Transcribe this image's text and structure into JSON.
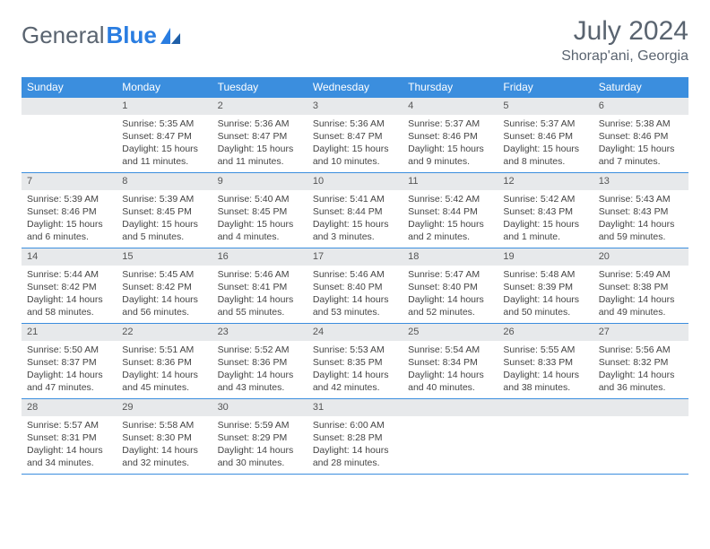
{
  "brand": {
    "part1": "General",
    "part2": "Blue"
  },
  "title": "July 2024",
  "location": "Shorap'ani, Georgia",
  "colors": {
    "header_bg": "#3b8ede",
    "header_text": "#ffffff",
    "daynum_bg": "#e7e9eb",
    "border": "#3b8ede",
    "title_color": "#5a6470",
    "body_text": "#444"
  },
  "weekdays": [
    "Sunday",
    "Monday",
    "Tuesday",
    "Wednesday",
    "Thursday",
    "Friday",
    "Saturday"
  ],
  "weeks": [
    [
      null,
      {
        "n": "1",
        "sr": "5:35 AM",
        "ss": "8:47 PM",
        "dl": "15 hours and 11 minutes."
      },
      {
        "n": "2",
        "sr": "5:36 AM",
        "ss": "8:47 PM",
        "dl": "15 hours and 11 minutes."
      },
      {
        "n": "3",
        "sr": "5:36 AM",
        "ss": "8:47 PM",
        "dl": "15 hours and 10 minutes."
      },
      {
        "n": "4",
        "sr": "5:37 AM",
        "ss": "8:46 PM",
        "dl": "15 hours and 9 minutes."
      },
      {
        "n": "5",
        "sr": "5:37 AM",
        "ss": "8:46 PM",
        "dl": "15 hours and 8 minutes."
      },
      {
        "n": "6",
        "sr": "5:38 AM",
        "ss": "8:46 PM",
        "dl": "15 hours and 7 minutes."
      }
    ],
    [
      {
        "n": "7",
        "sr": "5:39 AM",
        "ss": "8:46 PM",
        "dl": "15 hours and 6 minutes."
      },
      {
        "n": "8",
        "sr": "5:39 AM",
        "ss": "8:45 PM",
        "dl": "15 hours and 5 minutes."
      },
      {
        "n": "9",
        "sr": "5:40 AM",
        "ss": "8:45 PM",
        "dl": "15 hours and 4 minutes."
      },
      {
        "n": "10",
        "sr": "5:41 AM",
        "ss": "8:44 PM",
        "dl": "15 hours and 3 minutes."
      },
      {
        "n": "11",
        "sr": "5:42 AM",
        "ss": "8:44 PM",
        "dl": "15 hours and 2 minutes."
      },
      {
        "n": "12",
        "sr": "5:42 AM",
        "ss": "8:43 PM",
        "dl": "15 hours and 1 minute."
      },
      {
        "n": "13",
        "sr": "5:43 AM",
        "ss": "8:43 PM",
        "dl": "14 hours and 59 minutes."
      }
    ],
    [
      {
        "n": "14",
        "sr": "5:44 AM",
        "ss": "8:42 PM",
        "dl": "14 hours and 58 minutes."
      },
      {
        "n": "15",
        "sr": "5:45 AM",
        "ss": "8:42 PM",
        "dl": "14 hours and 56 minutes."
      },
      {
        "n": "16",
        "sr": "5:46 AM",
        "ss": "8:41 PM",
        "dl": "14 hours and 55 minutes."
      },
      {
        "n": "17",
        "sr": "5:46 AM",
        "ss": "8:40 PM",
        "dl": "14 hours and 53 minutes."
      },
      {
        "n": "18",
        "sr": "5:47 AM",
        "ss": "8:40 PM",
        "dl": "14 hours and 52 minutes."
      },
      {
        "n": "19",
        "sr": "5:48 AM",
        "ss": "8:39 PM",
        "dl": "14 hours and 50 minutes."
      },
      {
        "n": "20",
        "sr": "5:49 AM",
        "ss": "8:38 PM",
        "dl": "14 hours and 49 minutes."
      }
    ],
    [
      {
        "n": "21",
        "sr": "5:50 AM",
        "ss": "8:37 PM",
        "dl": "14 hours and 47 minutes."
      },
      {
        "n": "22",
        "sr": "5:51 AM",
        "ss": "8:36 PM",
        "dl": "14 hours and 45 minutes."
      },
      {
        "n": "23",
        "sr": "5:52 AM",
        "ss": "8:36 PM",
        "dl": "14 hours and 43 minutes."
      },
      {
        "n": "24",
        "sr": "5:53 AM",
        "ss": "8:35 PM",
        "dl": "14 hours and 42 minutes."
      },
      {
        "n": "25",
        "sr": "5:54 AM",
        "ss": "8:34 PM",
        "dl": "14 hours and 40 minutes."
      },
      {
        "n": "26",
        "sr": "5:55 AM",
        "ss": "8:33 PM",
        "dl": "14 hours and 38 minutes."
      },
      {
        "n": "27",
        "sr": "5:56 AM",
        "ss": "8:32 PM",
        "dl": "14 hours and 36 minutes."
      }
    ],
    [
      {
        "n": "28",
        "sr": "5:57 AM",
        "ss": "8:31 PM",
        "dl": "14 hours and 34 minutes."
      },
      {
        "n": "29",
        "sr": "5:58 AM",
        "ss": "8:30 PM",
        "dl": "14 hours and 32 minutes."
      },
      {
        "n": "30",
        "sr": "5:59 AM",
        "ss": "8:29 PM",
        "dl": "14 hours and 30 minutes."
      },
      {
        "n": "31",
        "sr": "6:00 AM",
        "ss": "8:28 PM",
        "dl": "14 hours and 28 minutes."
      },
      null,
      null,
      null
    ]
  ],
  "labels": {
    "sunrise": "Sunrise:",
    "sunset": "Sunset:",
    "daylight": "Daylight:"
  }
}
